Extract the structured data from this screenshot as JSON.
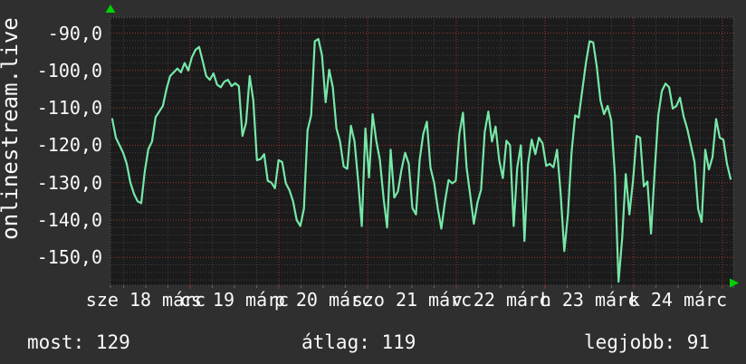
{
  "site_label": "onlinestream.live",
  "colors": {
    "background": "#2f2f2f",
    "plot_background": "#1b1b1b",
    "grid_minor": "#3f3f3f",
    "grid_major": "#9b3434",
    "frame": "#4f4f4f",
    "line": "#76e8a8",
    "arrow": "#00d200",
    "text": "#fafafa"
  },
  "stats": {
    "most_label": "most:",
    "most_value": "129",
    "atlag_label": "átlag:",
    "atlag_value": "119",
    "legjobb_label": "legjobb:",
    "legjobb_value": "91"
  },
  "chart_data": {
    "type": "line",
    "title": "onlinestream.live",
    "xlabel": "",
    "ylabel": "",
    "grid": true,
    "legend_position": "none",
    "ylim": [
      -158,
      -86
    ],
    "y_ticks": [
      -90,
      -100,
      -110,
      -120,
      -130,
      -140,
      -150
    ],
    "y_tick_labels": [
      "-90,0",
      "-100,0",
      "-110,0",
      "-120,0",
      "-130,0",
      "-140,0",
      "-150,0"
    ],
    "x_tick_labels": [
      "sze 18 márc",
      "cs 19 márc",
      "p 20 márc",
      "szo 21 márc",
      "v 22 márc",
      "h 23 márc",
      "k 24 márc"
    ],
    "x_range_days": 7,
    "stats": {
      "most": 129,
      "atlag": 119,
      "legjobb": 91
    },
    "series": [
      {
        "name": "onlinestream.live",
        "values": [
          -113,
          -118,
          -120,
          -122,
          -125,
          -130,
          -133,
          -135,
          -135.5,
          -127,
          -121,
          -119,
          -112.5,
          -111,
          -109.5,
          -105,
          -101.5,
          -100.5,
          -99.5,
          -100.5,
          -98,
          -100,
          -96.5,
          -94.5,
          -93.7,
          -97.5,
          -101.5,
          -102.5,
          -100.8,
          -103.8,
          -104.5,
          -103,
          -102.5,
          -104.2,
          -103.4,
          -104.2,
          -117.5,
          -114,
          -101.5,
          -108,
          -124,
          -123.7,
          -122.4,
          -129.5,
          -130,
          -131.5,
          -124,
          -124.5,
          -130.2,
          -132,
          -135,
          -140,
          -141.6,
          -137,
          -116,
          -112,
          -92.2,
          -91.6,
          -96,
          -108.5,
          -99.8,
          -104.5,
          -115.5,
          -119,
          -125.7,
          -126.3,
          -114.8,
          -119,
          -129.5,
          -141.6,
          -115.5,
          -128.6,
          -111.7,
          -118.8,
          -123.9,
          -134,
          -142,
          -121.2,
          -134,
          -132.4,
          -126.5,
          -122,
          -125,
          -136.8,
          -138.5,
          -124,
          -117,
          -113.7,
          -126,
          -130,
          -136.8,
          -142.3,
          -135,
          -129.3,
          -130.2,
          -129.5,
          -117,
          -111.3,
          -126,
          -133.4,
          -141,
          -135.3,
          -131.9,
          -116.5,
          -111,
          -119,
          -115,
          -124,
          -128.8,
          -118.8,
          -120,
          -141.6,
          -126,
          -120,
          -145.6,
          -125,
          -118.5,
          -122.4,
          -118,
          -119.5,
          -125.5,
          -125,
          -125.9,
          -121.2,
          -133,
          -148.3,
          -138.5,
          -122,
          -112,
          -112.6,
          -105.2,
          -98,
          -92.2,
          -92.5,
          -99,
          -108,
          -111.7,
          -109.5,
          -113.4,
          -128,
          -156.5,
          -145,
          -127.7,
          -138.5,
          -129.5,
          -117.5,
          -118,
          -131,
          -129.7,
          -143.6,
          -127,
          -112,
          -105.5,
          -103.5,
          -104.5,
          -110.2,
          -109.5,
          -107.3,
          -112.3,
          -115.6,
          -120,
          -124.4,
          -137,
          -140.5,
          -121.2,
          -126.5,
          -123.2,
          -113,
          -118,
          -118.5,
          -125,
          -129
        ]
      }
    ]
  }
}
